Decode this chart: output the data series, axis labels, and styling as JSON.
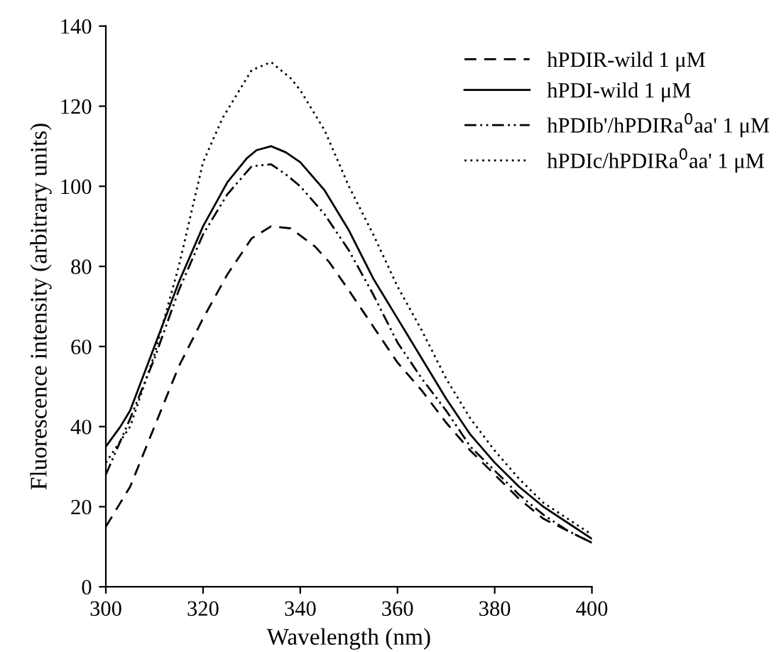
{
  "chart_data": {
    "type": "line",
    "xlabel": "Wavelength (nm)",
    "ylabel": "Fluorescence intensity (arbitrary units)",
    "xlim": [
      300,
      400
    ],
    "ylim": [
      0,
      140
    ],
    "xticks": [
      300,
      320,
      340,
      360,
      380,
      400
    ],
    "yticks": [
      0,
      20,
      40,
      60,
      80,
      100,
      120,
      140
    ],
    "grid": false,
    "legend": "top right",
    "marker": "none",
    "series": [
      {
        "name": "hPDIR-wild 1 μM",
        "color": "#000000",
        "line_style": "dashed",
        "x": [
          300,
          305,
          310,
          315,
          320,
          325,
          330,
          334,
          338,
          343,
          346,
          350,
          355,
          360,
          365,
          370,
          375,
          380,
          385,
          390,
          395,
          400
        ],
        "values": [
          15,
          25,
          40,
          55,
          67,
          78,
          87,
          90,
          89.5,
          85,
          81,
          74,
          65,
          56,
          49,
          41,
          34,
          28,
          22,
          17,
          14,
          11
        ]
      },
      {
        "name": "hPDI-wild 1 μM",
        "color": "#000000",
        "line_style": "solid",
        "x": [
          300,
          303,
          305,
          310,
          315,
          320,
          325,
          329,
          331,
          334,
          337,
          340,
          345,
          350,
          355,
          360,
          365,
          370,
          375,
          380,
          385,
          390,
          395,
          400
        ],
        "values": [
          35,
          40,
          44,
          60,
          76,
          90,
          101,
          107,
          109,
          110,
          108.5,
          106,
          99,
          89,
          77,
          67,
          57,
          47,
          38,
          31,
          25,
          20,
          16,
          12
        ]
      },
      {
        "name": "hPDIb'/hPDIRa$^{0}$aa' 1 μM",
        "color": "#000000",
        "line_style": "dashdotdot",
        "x": [
          300,
          305,
          310,
          315,
          320,
          325,
          330,
          334,
          337,
          340,
          345,
          350,
          355,
          360,
          365,
          370,
          375,
          380,
          385,
          390,
          395,
          400
        ],
        "values": [
          28,
          42,
          57,
          74,
          88,
          98,
          105,
          105.5,
          103,
          100,
          93,
          84,
          73,
          61,
          52,
          44,
          35,
          29,
          23,
          18,
          14,
          11
        ]
      },
      {
        "name": "hPDIc/hPDIRa$^{0}$aa' 1 μM",
        "color": "#000000",
        "line_style": "dotted",
        "x": [
          300,
          305,
          310,
          315,
          320,
          324,
          328,
          330,
          334,
          338,
          340,
          345,
          350,
          355,
          360,
          365,
          370,
          375,
          380,
          385,
          390,
          395,
          400
        ],
        "values": [
          31,
          40,
          58,
          80,
          106,
          117,
          125,
          129,
          131,
          127,
          124,
          114,
          100,
          88,
          75,
          64,
          52,
          42,
          34,
          27,
          21,
          17,
          13
        ]
      }
    ]
  }
}
